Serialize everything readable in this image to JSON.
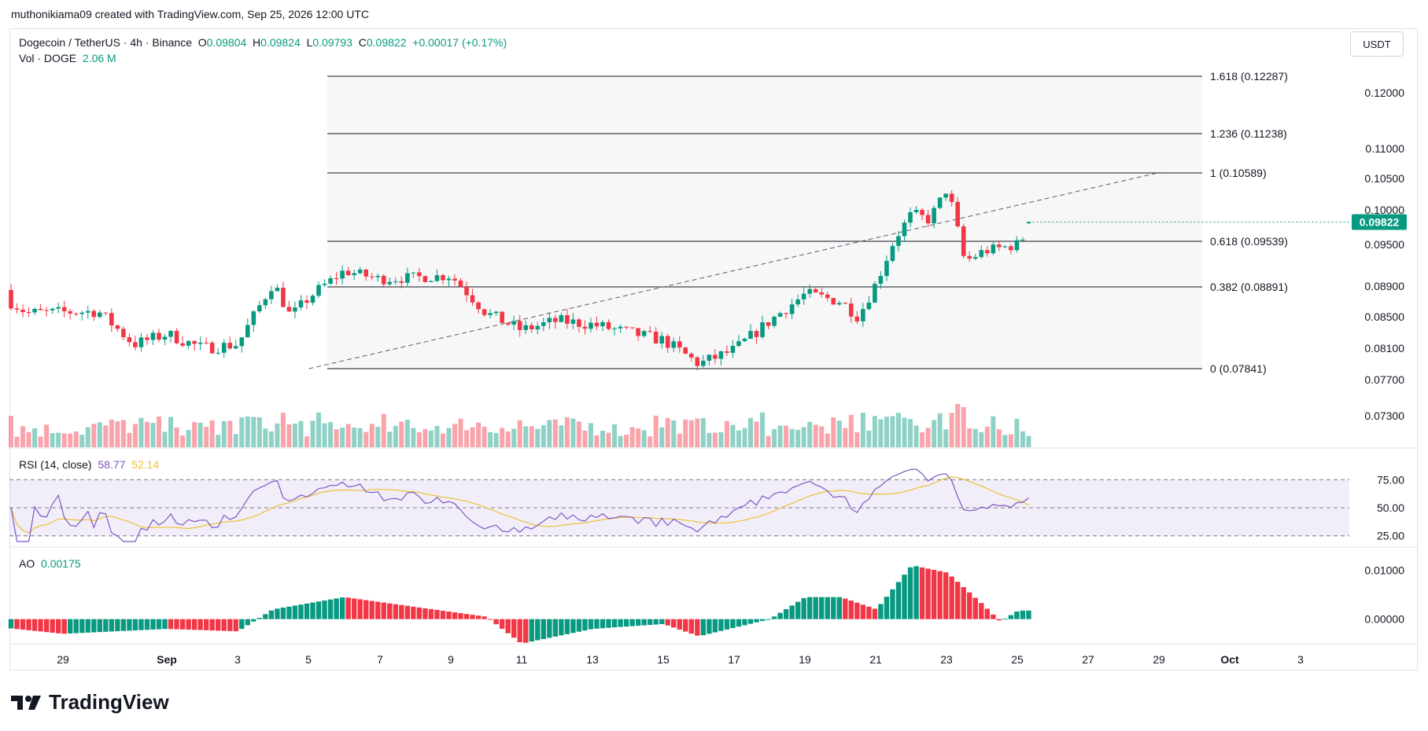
{
  "header": {
    "caption": "muthonikiama09 created with TradingView.com, Sep 25, 2026 12:00 UTC"
  },
  "legend": {
    "symbol": "Dogecoin / TetherUS · 4h · Binance",
    "o_label": "O",
    "o": "0.09804",
    "h_label": "H",
    "h": "0.09824",
    "l_label": "L",
    "l": "0.09793",
    "c_label": "C",
    "c": "0.09822",
    "change": "+0.00017 (+0.17%)",
    "vol_label": "Vol · DOGE",
    "vol": "2.06 M"
  },
  "currency_button": "USDT",
  "current_price": "0.09822",
  "colors": {
    "up": "#089981",
    "down": "#f23645",
    "rsi": "#7e57c2",
    "rsi_ma": "#ebc139",
    "fib": "#131722"
  },
  "logo": {
    "icon": "tradingview-logo-icon",
    "text": "TradingView"
  },
  "rsi_legend": {
    "label": "RSI (14, close)",
    "value": "58.77",
    "ma": "52.14"
  },
  "ao_legend": {
    "label": "AO",
    "value": "0.00175"
  },
  "chart_data": [
    {
      "type": "candlestick",
      "title": "Dogecoin / TetherUS · 4h · Binance",
      "x_ticks": [
        "29",
        "Sep",
        "3",
        "5",
        "7",
        "9",
        "11",
        "13",
        "15",
        "17",
        "19",
        "21",
        "23",
        "25",
        "27",
        "29",
        "Oct",
        "3"
      ],
      "y_ticks": [
        "0.12000",
        "0.11000",
        "0.10500",
        "0.10000",
        "0.09500",
        "0.08900",
        "0.08500",
        "0.08100",
        "0.07700",
        "0.07300"
      ],
      "fib_levels": [
        {
          "label": "1.618 (0.12287)",
          "value": 0.12287
        },
        {
          "label": "1.236 (0.11238)",
          "value": 0.11238
        },
        {
          "label": "1 (0.10589)",
          "value": 0.10589
        },
        {
          "label": "0.618 (0.09539)",
          "value": 0.09539
        },
        {
          "label": "0.382 (0.08891)",
          "value": 0.08891
        },
        {
          "label": "0 (0.07841)",
          "value": 0.07841
        }
      ],
      "trendline": {
        "from": [
          "Sep 5",
          0.0784
        ],
        "to": [
          "Sep 29",
          0.106
        ],
        "style": "dashed"
      },
      "closes_anchors": [
        [
          "Aug 27",
          0.0885
        ],
        [
          "Aug 28",
          0.0855
        ],
        [
          "Aug 30",
          0.0857
        ],
        [
          "Aug 31",
          0.0815
        ],
        [
          "Sep 1",
          0.0828
        ],
        [
          "Sep 2",
          0.081
        ],
        [
          "Sep 3",
          0.0815
        ],
        [
          "Sep 4",
          0.0895
        ],
        [
          "Sep 4 pm",
          0.085
        ],
        [
          "Sep 5",
          0.0875
        ],
        [
          "Sep 6",
          0.0912
        ],
        [
          "Sep 7",
          0.09
        ],
        [
          "Sep 9",
          0.0905
        ],
        [
          "Sep 10",
          0.0855
        ],
        [
          "Sep 11",
          0.0833
        ],
        [
          "Sep 12",
          0.0845
        ],
        [
          "Sep 13",
          0.084
        ],
        [
          "Sep 14",
          0.083
        ],
        [
          "Sep 15",
          0.082
        ],
        [
          "Sep 16",
          0.079
        ],
        [
          "Sep 17",
          0.0808
        ],
        [
          "Sep 18",
          0.0845
        ],
        [
          "Sep 19",
          0.088
        ],
        [
          "Sep 20",
          0.087
        ],
        [
          "Sep 20 pm",
          0.085
        ],
        [
          "Sep 21",
          0.0895
        ],
        [
          "Sep 21 pm",
          0.0955
        ],
        [
          "Sep 22",
          0.0995
        ],
        [
          "Sep 22 pm",
          0.0985
        ],
        [
          "Sep 23",
          0.1035
        ],
        [
          "Sep 23 pm",
          0.0925
        ],
        [
          "Sep 24",
          0.094
        ],
        [
          "Sep 25",
          0.095
        ],
        [
          "Sep 25 last",
          0.09822
        ]
      ],
      "volume": {
        "last": "2.06 M"
      }
    },
    {
      "type": "line",
      "title": "RSI (14, close)",
      "series": [
        {
          "name": "RSI",
          "last": 58.77
        },
        {
          "name": "RSI MA",
          "last": 52.14
        }
      ],
      "bands": [
        75,
        50,
        25
      ],
      "y_ticks": [
        "75.00",
        "50.00",
        "25.00"
      ],
      "ylim": [
        15,
        85
      ]
    },
    {
      "type": "bar",
      "title": "AO",
      "last": 0.00175,
      "y_ticks": [
        "0.01000",
        "0.00000"
      ],
      "anchors": [
        [
          "Aug 27",
          -0.0015
        ],
        [
          "Aug 29",
          -0.003
        ],
        [
          "Sep 1",
          -0.002
        ],
        [
          "Sep 3",
          -0.0025
        ],
        [
          "Sep 4",
          0.002
        ],
        [
          "Sep 6",
          0.0045
        ],
        [
          "Sep 8",
          0.0025
        ],
        [
          "Sep 10",
          0.0005
        ],
        [
          "Sep 11",
          -0.005
        ],
        [
          "Sep 13",
          -0.002
        ],
        [
          "Sep 15",
          -0.001
        ],
        [
          "Sep 16",
          -0.0035
        ],
        [
          "Sep 18",
          0.0
        ],
        [
          "Sep 19",
          0.0045
        ],
        [
          "Sep 20",
          0.0045
        ],
        [
          "Sep 21",
          0.002
        ],
        [
          "Sep 22",
          0.011
        ],
        [
          "Sep 23",
          0.0095
        ],
        [
          "Sep 24",
          0.003
        ],
        [
          "Sep 24 pm",
          -0.0005
        ],
        [
          "Sep 25",
          0.00175
        ]
      ]
    }
  ]
}
